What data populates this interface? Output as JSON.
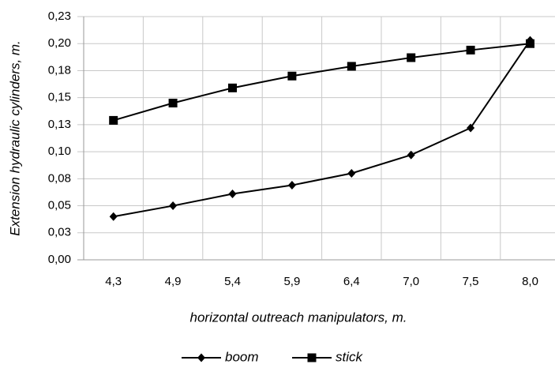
{
  "chart_data": {
    "type": "line",
    "xlabel": "horizontal outreach manipulators, m.",
    "ylabel": "Extension hydraulic cylinders, m.",
    "categories": [
      "4,3",
      "4,9",
      "5,4",
      "5,9",
      "6,4",
      "7,0",
      "7,5",
      "8,0"
    ],
    "series": [
      {
        "name": "boom",
        "color": "#000000",
        "marker": "diamond",
        "values": [
          0.04,
          0.05,
          0.061,
          0.069,
          0.08,
          0.097,
          0.122,
          0.203
        ]
      },
      {
        "name": "stick",
        "color": "#000000",
        "marker": "square",
        "values": [
          0.129,
          0.145,
          0.159,
          0.17,
          0.179,
          0.187,
          0.194,
          0.2
        ]
      }
    ],
    "ylim": [
      0,
      0.225
    ],
    "yticks": [
      {
        "value": 0,
        "label": "0,00"
      },
      {
        "value": 0.025,
        "label": "0,03"
      },
      {
        "value": 0.05,
        "label": "0,05"
      },
      {
        "value": 0.075,
        "label": "0,08"
      },
      {
        "value": 0.1,
        "label": "0,10"
      },
      {
        "value": 0.125,
        "label": "0,13"
      },
      {
        "value": 0.15,
        "label": "0,15"
      },
      {
        "value": 0.175,
        "label": "0,18"
      },
      {
        "value": 0.2,
        "label": "0,20"
      },
      {
        "value": 0.225,
        "label": "0,23"
      }
    ],
    "grid": true,
    "legend": "bottom"
  }
}
